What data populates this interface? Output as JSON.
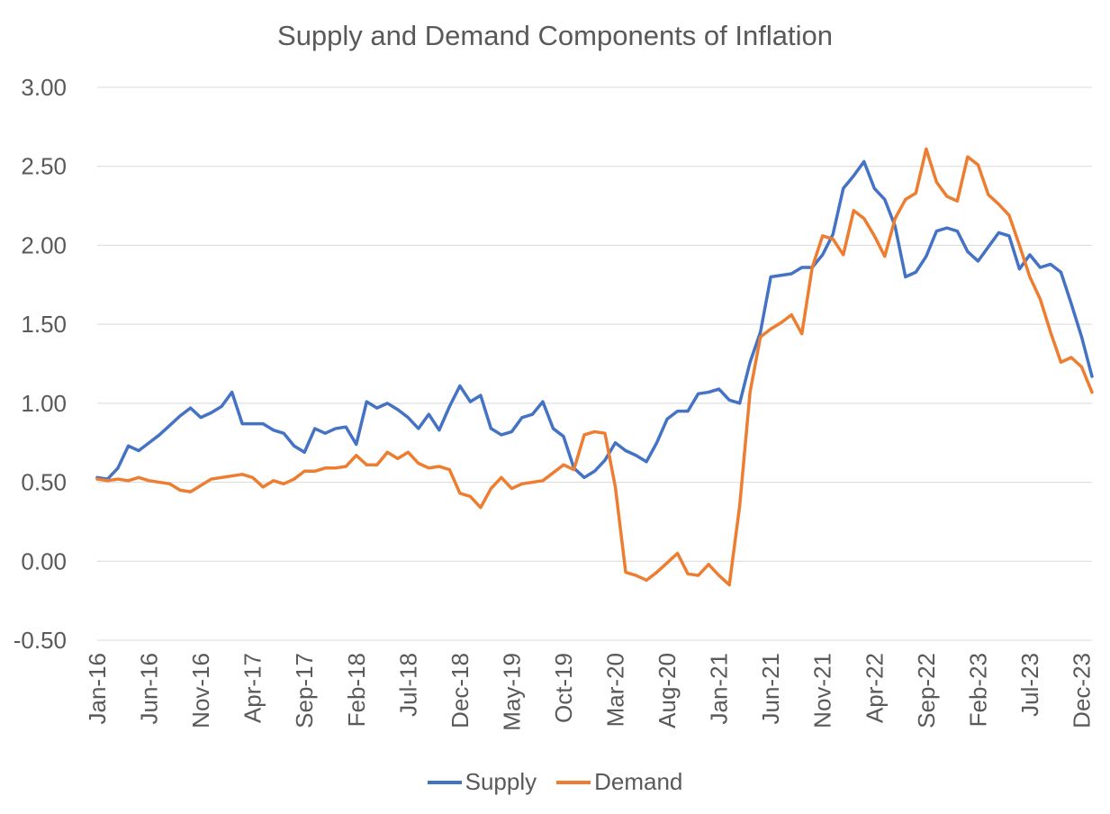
{
  "chart_data": {
    "type": "line",
    "title": "Supply and Demand Components of Inflation",
    "ylim": [
      -0.5,
      3.0
    ],
    "y_ticks": [
      "3.00",
      "2.50",
      "2.00",
      "1.50",
      "1.00",
      "0.50",
      "0.00",
      "-0.50"
    ],
    "x_tick_labels": [
      "Jan-16",
      "Jun-16",
      "Nov-16",
      "Apr-17",
      "Sep-17",
      "Feb-18",
      "Jul-18",
      "Dec-18",
      "May-19",
      "Oct-19",
      "Mar-20",
      "Aug-20",
      "Jan-21",
      "Jun-21",
      "Nov-21",
      "Apr-22",
      "Sep-22",
      "Feb-23",
      "Jul-23",
      "Dec-23"
    ],
    "x_start": "Jan-16",
    "grid": true,
    "legend_position": "bottom",
    "series": [
      {
        "name": "Supply",
        "color": "#4472C4",
        "values": [
          0.53,
          0.52,
          0.59,
          0.73,
          0.7,
          0.75,
          0.8,
          0.86,
          0.92,
          0.97,
          0.91,
          0.94,
          0.98,
          1.07,
          0.87,
          0.87,
          0.87,
          0.83,
          0.81,
          0.73,
          0.69,
          0.84,
          0.81,
          0.84,
          0.85,
          0.74,
          1.01,
          0.97,
          1.0,
          0.96,
          0.91,
          0.84,
          0.93,
          0.83,
          0.98,
          1.11,
          1.01,
          1.05,
          0.84,
          0.8,
          0.82,
          0.91,
          0.93,
          1.01,
          0.84,
          0.79,
          0.59,
          0.53,
          0.57,
          0.64,
          0.75,
          0.7,
          0.67,
          0.63,
          0.75,
          0.9,
          0.95,
          0.95,
          1.06,
          1.07,
          1.09,
          1.02,
          1.0,
          1.26,
          1.45,
          1.8,
          1.81,
          1.82,
          1.86,
          1.86,
          1.94,
          2.07,
          2.36,
          2.44,
          2.53,
          2.36,
          2.29,
          2.12,
          1.8,
          1.83,
          1.93,
          2.09,
          2.11,
          2.09,
          1.96,
          1.9,
          1.99,
          2.08,
          2.06,
          1.85,
          1.94,
          1.86,
          1.88,
          1.83,
          1.63,
          1.42,
          1.17
        ]
      },
      {
        "name": "Demand",
        "color": "#ED7D31",
        "values": [
          0.52,
          0.51,
          0.52,
          0.51,
          0.53,
          0.51,
          0.5,
          0.49,
          0.45,
          0.44,
          0.48,
          0.52,
          0.53,
          0.54,
          0.55,
          0.53,
          0.47,
          0.51,
          0.49,
          0.52,
          0.57,
          0.57,
          0.59,
          0.59,
          0.6,
          0.67,
          0.61,
          0.61,
          0.69,
          0.65,
          0.69,
          0.62,
          0.59,
          0.6,
          0.58,
          0.43,
          0.41,
          0.34,
          0.46,
          0.53,
          0.46,
          0.49,
          0.5,
          0.51,
          0.56,
          0.61,
          0.58,
          0.8,
          0.82,
          0.81,
          0.47,
          -0.07,
          -0.09,
          -0.12,
          -0.07,
          -0.01,
          0.05,
          -0.08,
          -0.09,
          -0.02,
          -0.09,
          -0.15,
          0.35,
          1.07,
          1.42,
          1.47,
          1.51,
          1.56,
          1.44,
          1.86,
          2.06,
          2.04,
          1.94,
          2.22,
          2.17,
          2.06,
          1.93,
          2.17,
          2.29,
          2.33,
          2.61,
          2.4,
          2.31,
          2.28,
          2.56,
          2.51,
          2.32,
          2.26,
          2.19,
          2.0,
          1.8,
          1.66,
          1.45,
          1.26,
          1.29,
          1.23,
          1.07
        ]
      }
    ]
  }
}
